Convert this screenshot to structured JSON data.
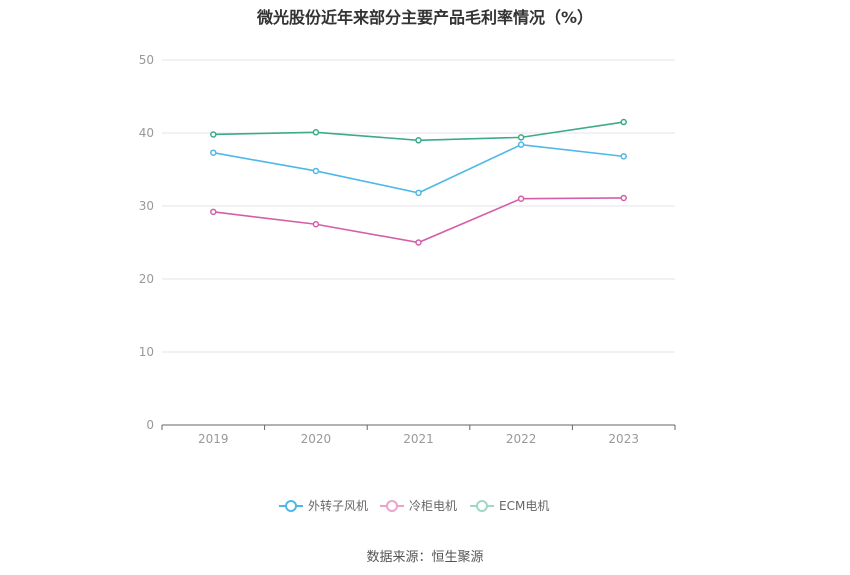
{
  "source_text": "数据来源：恒生聚源",
  "chart_data": {
    "type": "line",
    "title": "微光股份近年来部分主要产品毛利率情况（%）",
    "categories": [
      "2019",
      "2020",
      "2021",
      "2022",
      "2023"
    ],
    "ylim": [
      0,
      50
    ],
    "yticks": [
      "0",
      "10",
      "20",
      "30",
      "40",
      "50"
    ],
    "grid": true,
    "legend_position": "bottom",
    "series": [
      {
        "name": "外转子风机",
        "color": "#4db8e8",
        "values": [
          37.3,
          34.8,
          31.8,
          38.4,
          36.8
        ]
      },
      {
        "name": "冷柜电机",
        "color": "#d45fa8",
        "values": [
          29.2,
          27.5,
          25.0,
          31.0,
          31.1
        ]
      },
      {
        "name": "ECM电机",
        "color": "#3daa8a",
        "values": [
          39.8,
          40.1,
          39.0,
          39.4,
          41.5
        ]
      }
    ]
  }
}
